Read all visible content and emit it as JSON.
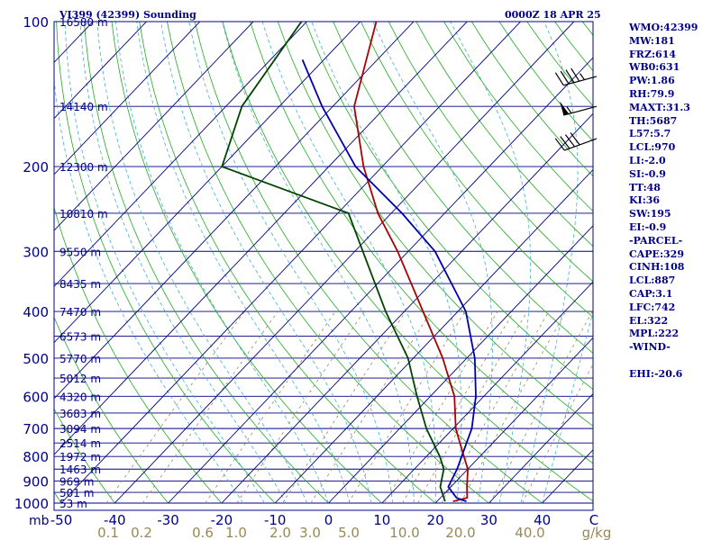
{
  "chart_data": {
    "type": "line",
    "title": "VI399 (42399) Sounding",
    "valid_time": "0000Z 18 APR 25",
    "pressure_axis": {
      "unit": "mb",
      "ticks": [
        100,
        200,
        300,
        400,
        500,
        600,
        700,
        800,
        900,
        1000
      ],
      "range": [
        1000,
        100
      ],
      "scale": "log"
    },
    "height_labels": [
      {
        "p": 100,
        "label": "16580 m"
      },
      {
        "p": 150,
        "label": "14140 m"
      },
      {
        "p": 200,
        "label": "12300 m"
      },
      {
        "p": 250,
        "label": "10810 m"
      },
      {
        "p": 300,
        "label": "9550 m"
      },
      {
        "p": 350,
        "label": "8435 m"
      },
      {
        "p": 400,
        "label": "7470 m"
      },
      {
        "p": 450,
        "label": "6573 m"
      },
      {
        "p": 500,
        "label": "5770 m"
      },
      {
        "p": 550,
        "label": "5012 m"
      },
      {
        "p": 600,
        "label": "4320 m"
      },
      {
        "p": 650,
        "label": "3683 m"
      },
      {
        "p": 700,
        "label": "3094 m"
      },
      {
        "p": 750,
        "label": "2514 m"
      },
      {
        "p": 800,
        "label": "1972 m"
      },
      {
        "p": 850,
        "label": "1463 m"
      },
      {
        "p": 900,
        "label": "969 m"
      },
      {
        "p": 950,
        "label": "501 m"
      },
      {
        "p": 1000,
        "label": "53 m"
      }
    ],
    "temperature_axis": {
      "unit": "C",
      "ticks": [
        -50,
        -40,
        -30,
        -20,
        -10,
        0,
        10,
        20,
        30,
        40
      ],
      "range": [
        -50,
        50
      ]
    },
    "mixing_ratio_axis": {
      "unit": "g/kg",
      "ticks": [
        0.1,
        0.2,
        0.6,
        1.0,
        2.0,
        3.0,
        5.0,
        10.0,
        20.0,
        40.0
      ]
    },
    "series": [
      {
        "name": "temperature",
        "color": "#aa0000",
        "points": [
          {
            "p": 992,
            "t": 23.0
          },
          {
            "p": 975,
            "t": 25.0
          },
          {
            "p": 925,
            "t": 23.0
          },
          {
            "p": 850,
            "t": 20.0
          },
          {
            "p": 800,
            "t": 17.0
          },
          {
            "p": 700,
            "t": 10.5
          },
          {
            "p": 600,
            "t": 4.5
          },
          {
            "p": 500,
            "t": -4.5
          },
          {
            "p": 400,
            "t": -16.5
          },
          {
            "p": 300,
            "t": -32.0
          },
          {
            "p": 250,
            "t": -42.5
          },
          {
            "p": 200,
            "t": -53.5
          },
          {
            "p": 150,
            "t": -66.0
          },
          {
            "p": 100,
            "t": -77.0
          }
        ]
      },
      {
        "name": "dewpoint",
        "color": "#004400",
        "points": [
          {
            "p": 992,
            "t": 21.5
          },
          {
            "p": 925,
            "t": 18.0
          },
          {
            "p": 850,
            "t": 15.5
          },
          {
            "p": 800,
            "t": 12.5
          },
          {
            "p": 700,
            "t": 5.0
          },
          {
            "p": 600,
            "t": -2.5
          },
          {
            "p": 500,
            "t": -11.0
          },
          {
            "p": 400,
            "t": -23.5
          },
          {
            "p": 300,
            "t": -38.5
          },
          {
            "p": 250,
            "t": -48.0
          },
          {
            "p": 200,
            "t": -80.0
          },
          {
            "p": 150,
            "t": -87.0
          },
          {
            "p": 100,
            "t": -91.0
          }
        ]
      },
      {
        "name": "parcel",
        "color": "#0000aa",
        "points": [
          {
            "p": 992,
            "t": 25.5
          },
          {
            "p": 975,
            "t": 23.0
          },
          {
            "p": 925,
            "t": 19.5
          },
          {
            "p": 850,
            "t": 18.0
          },
          {
            "p": 700,
            "t": 13.5
          },
          {
            "p": 600,
            "t": 8.5
          },
          {
            "p": 500,
            "t": 1.5
          },
          {
            "p": 400,
            "t": -8.5
          },
          {
            "p": 300,
            "t": -25.0
          },
          {
            "p": 250,
            "t": -38.0
          },
          {
            "p": 200,
            "t": -55.0
          },
          {
            "p": 150,
            "t": -72.0
          },
          {
            "p": 120,
            "t": -84.0
          }
        ]
      }
    ],
    "wind_barbs": [
      {
        "p": 130,
        "dir": 255,
        "kt": 45
      },
      {
        "p": 150,
        "dir": 255,
        "kt": 55
      },
      {
        "p": 175,
        "dir": 250,
        "kt": 40
      }
    ],
    "grid": true,
    "colors": {
      "frame": "#00008b",
      "isotherm": "#000080",
      "isobar": "#000080",
      "dry_adiabat": "#22aa22",
      "moist_adiabat": "#44b0d0",
      "mixing_ratio": "#998855",
      "mr_label": "#998855",
      "background": "#ffffff"
    }
  },
  "indices": [
    "WMO:42399",
    "MW:181",
    "FRZ:614",
    "WB0:631",
    "PW:1.86",
    "RH:79.9",
    "MAXT:31.3",
    "TH:5687",
    "L57:5.7",
    "LCL:970",
    "LI:-2.0",
    "SI:-0.9",
    "TT:48",
    "KI:36",
    "SW:195",
    "EI:-0.9",
    "-PARCEL-",
    "CAPE:329",
    "CINH:108",
    "LCL:887",
    "CAP:3.1",
    "LFC:742",
    "EL:322",
    "MPL:222",
    "-WIND-",
    "",
    "EHI:-20.6"
  ]
}
